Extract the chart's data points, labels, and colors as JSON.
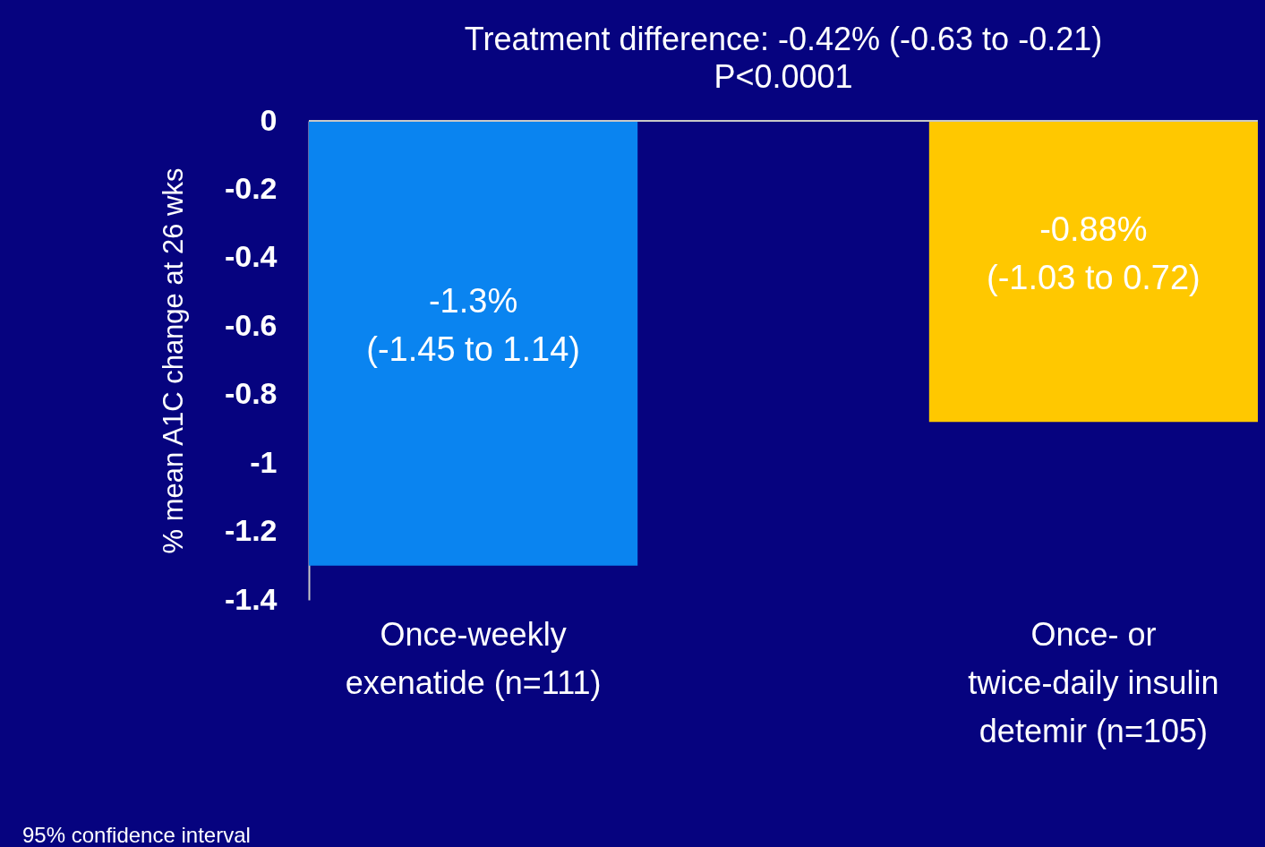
{
  "chart_data": {
    "type": "bar",
    "title": "Treatment difference: -0.42% (-0.63 to -0.21)",
    "subtitle": "P<0.0001",
    "ylabel": "% mean A1C change at 26 wks",
    "categories": [
      "Once-weekly exenatide (n=111)",
      "Once- or twice-daily insulin detemir (n=105)"
    ],
    "values": [
      -1.3,
      -0.88
    ],
    "colors": [
      "#0a84f0",
      "#ffc800"
    ],
    "value_labels": [
      "-1.3% (-1.45 to 1.14)",
      "-0.88% (-1.03 to 0.72)"
    ],
    "ylim": [
      -1.4,
      0
    ],
    "yticks": [
      0,
      -0.2,
      -0.4,
      -0.6,
      -0.8,
      -1,
      -1.2,
      -1.4
    ],
    "grid": false,
    "legend": false,
    "annotations": [
      "95% confidence interval"
    ]
  }
}
